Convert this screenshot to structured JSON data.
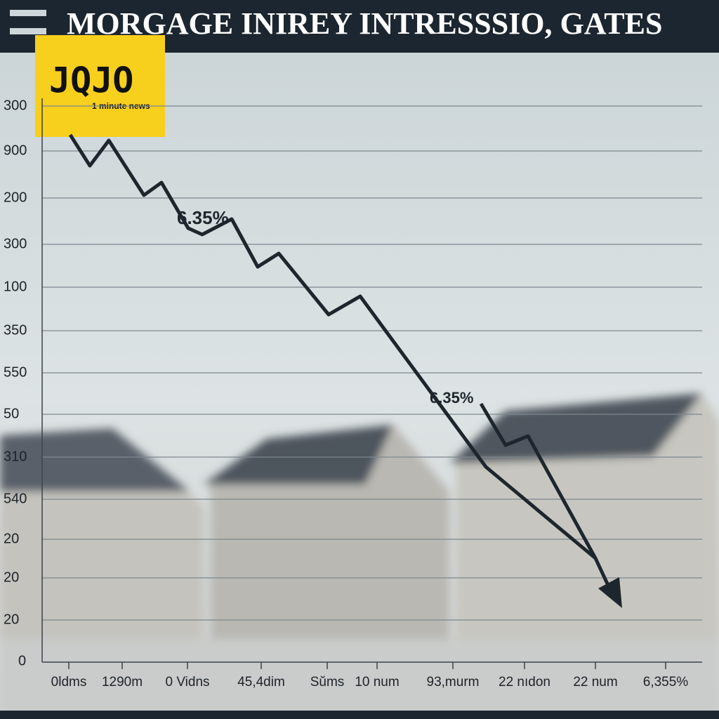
{
  "header": {
    "title": "MORGAGE INIREY INTRESSSIO, GATES"
  },
  "logo": {
    "name": "JQJO",
    "tagline": "1 minute news"
  },
  "y_axis_labels": [
    "300",
    "900",
    "200",
    "300",
    "100",
    "350",
    "550",
    "50",
    "310",
    "540",
    "20",
    "20",
    "20",
    "0"
  ],
  "x_axis_labels": [
    "0ldms",
    "1290m",
    "0 Vidns",
    "45,4dim",
    "Sŭms",
    "10 num",
    "93,murm",
    "22 nıdon",
    "22 num",
    "6,355%"
  ],
  "annotations": [
    "6.35%",
    "6.35%"
  ]
}
